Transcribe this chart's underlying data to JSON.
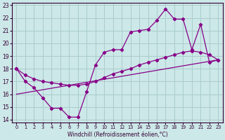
{
  "xlabel": "Windchill (Refroidissement éolien,°C)",
  "bg_color": "#cce8e8",
  "grid_color": "#aacccc",
  "line_color": "#880088",
  "xlim": [
    -0.5,
    23.5
  ],
  "ylim": [
    13.8,
    23.2
  ],
  "xticks": [
    0,
    1,
    2,
    3,
    4,
    5,
    6,
    7,
    8,
    9,
    10,
    11,
    12,
    13,
    14,
    15,
    16,
    17,
    18,
    19,
    20,
    21,
    22,
    23
  ],
  "yticks": [
    14,
    15,
    16,
    17,
    18,
    19,
    20,
    21,
    22,
    23
  ],
  "line1_x": [
    0,
    1,
    2,
    3,
    4,
    5,
    6,
    7,
    8,
    9,
    10,
    11,
    12,
    13,
    14,
    15,
    16,
    17,
    18,
    19,
    20,
    21,
    22,
    23
  ],
  "line1_y": [
    18.0,
    17.0,
    16.5,
    15.7,
    14.9,
    14.9,
    14.2,
    14.2,
    16.2,
    18.3,
    19.3,
    19.5,
    19.5,
    20.9,
    21.0,
    21.1,
    21.8,
    22.7,
    21.9,
    21.9,
    19.5,
    21.5,
    18.5,
    18.7
  ],
  "line2_x": [
    0,
    1,
    2,
    3,
    4,
    5,
    6,
    7,
    8,
    9,
    10,
    11,
    12,
    13,
    14,
    15,
    16,
    17,
    18,
    19,
    20,
    21,
    22,
    23
  ],
  "line2_y": [
    18.0,
    17.5,
    17.2,
    17.0,
    16.9,
    16.8,
    16.7,
    16.7,
    16.8,
    17.0,
    17.3,
    17.6,
    17.8,
    18.0,
    18.3,
    18.5,
    18.7,
    18.9,
    19.1,
    19.3,
    19.4,
    19.3,
    19.1,
    18.7
  ],
  "line3_x": [
    0,
    23
  ],
  "line3_y": [
    16.0,
    18.7
  ]
}
